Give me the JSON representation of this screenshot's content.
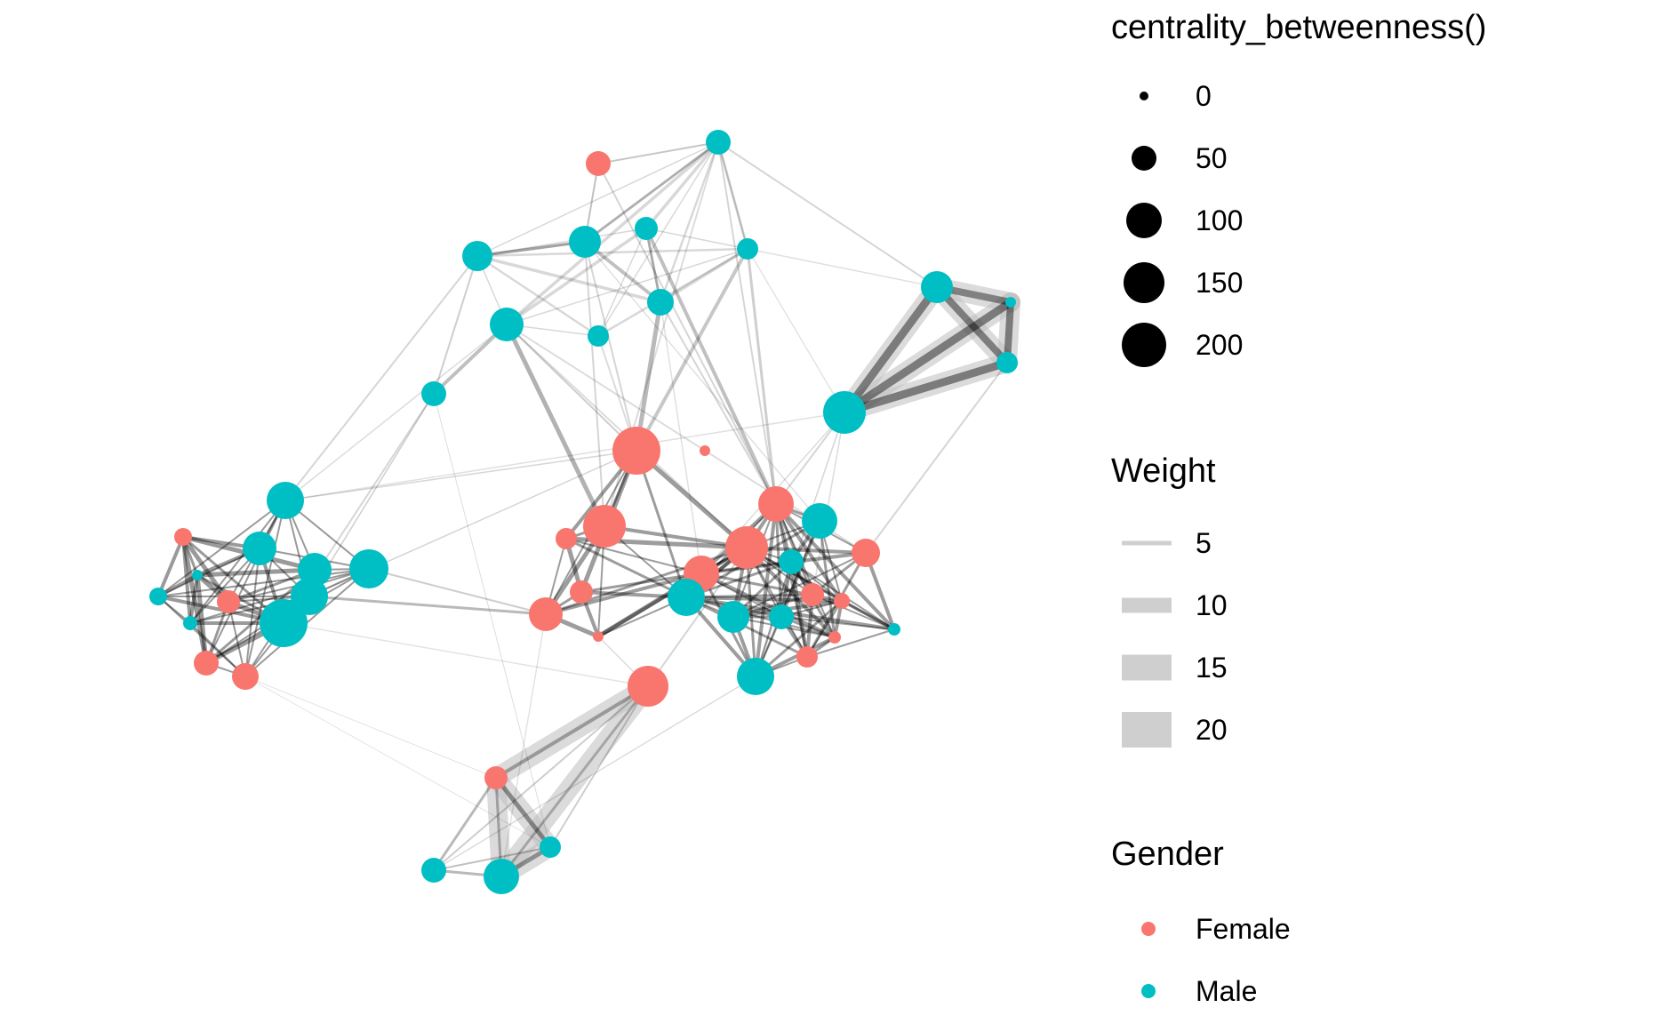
{
  "legend": {
    "size": {
      "title": "centrality_betweenness()",
      "entries": [
        {
          "label": "0",
          "value": 0
        },
        {
          "label": "50",
          "value": 50
        },
        {
          "label": "100",
          "value": 100
        },
        {
          "label": "150",
          "value": 150
        },
        {
          "label": "200",
          "value": 200
        }
      ]
    },
    "weight": {
      "title": "Weight",
      "entries": [
        {
          "label": "5",
          "value": 5
        },
        {
          "label": "10",
          "value": 10
        },
        {
          "label": "15",
          "value": 15
        },
        {
          "label": "20",
          "value": 20
        }
      ]
    },
    "gender": {
      "title": "Gender",
      "entries": [
        {
          "label": "Female",
          "color": "#F8766D"
        },
        {
          "label": "Male",
          "color": "#00BFC4"
        }
      ]
    }
  },
  "colors": {
    "female": "#F8766D",
    "male": "#00BFC4",
    "edge": "#000000",
    "edge_highlight": "#bdbdbd",
    "legend_weight_swatch": "#cfcfcf"
  },
  "chart_data": {
    "type": "network",
    "encodings": {
      "node_size": "centrality_betweenness()",
      "node_color": "Gender",
      "edge_width": "Weight"
    }
  }
}
